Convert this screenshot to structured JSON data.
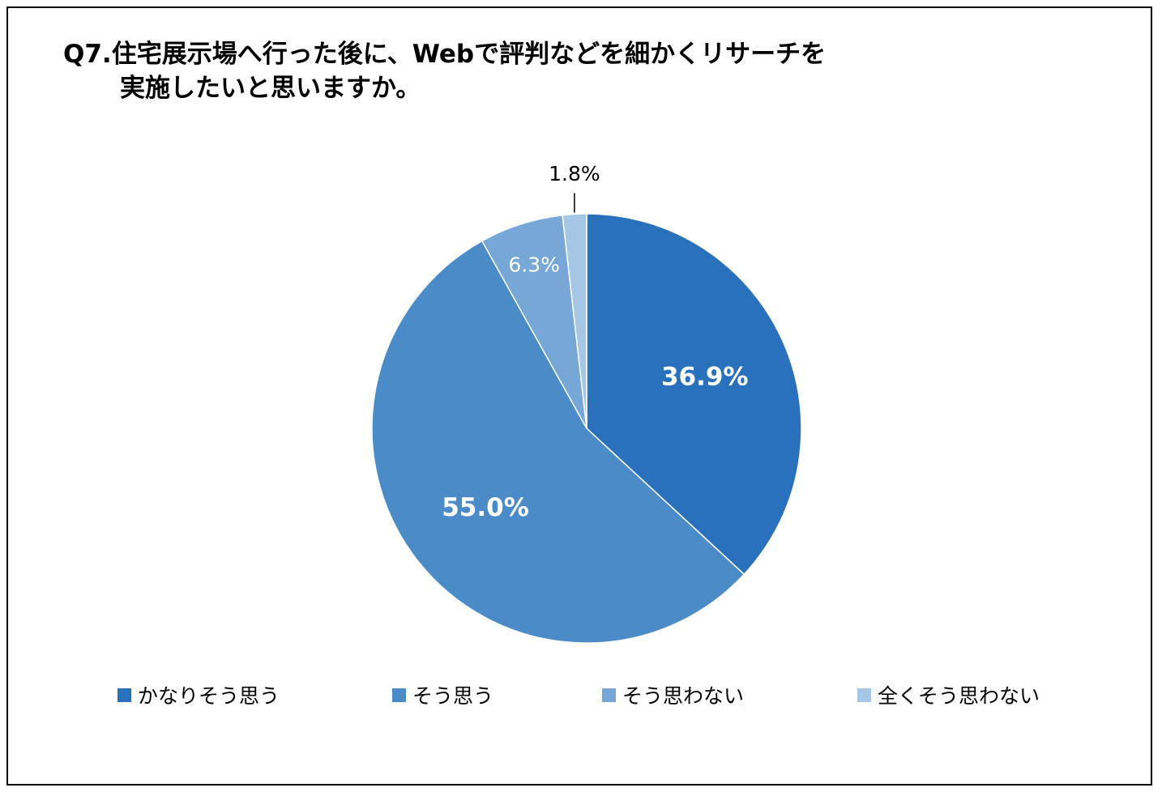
{
  "chart_data": {
    "type": "pie",
    "title_line1": "Q7.住宅展示場へ行った後に、Webで評判などを細かくリサーチを",
    "title_line2": "実施したいと思いますか。",
    "categories": [
      "かなりそう思う",
      "そう思う",
      "そう思わない",
      "全くそう思わない"
    ],
    "values": [
      36.9,
      55.0,
      6.3,
      1.8
    ],
    "data_labels": [
      "36.9%",
      "55.0%",
      "6.3%",
      "1.8%"
    ],
    "colors": [
      "#2970BD",
      "#4A8BC8",
      "#76A7D6",
      "#A6C6E6"
    ],
    "legend_position": "bottom",
    "start_angle": "12 o'clock",
    "direction": "clockwise"
  }
}
